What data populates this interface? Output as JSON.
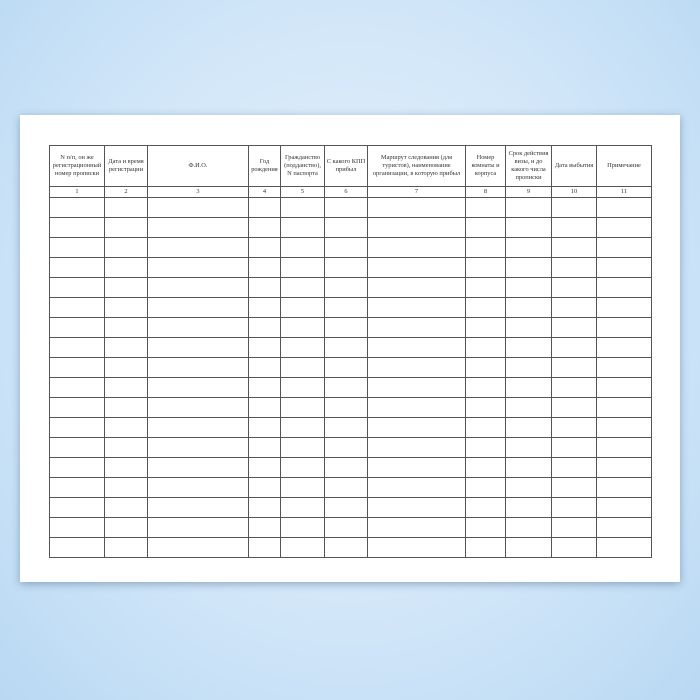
{
  "columns": [
    {
      "header": "N п/п, он же регистрационный номер прописки",
      "number": "1"
    },
    {
      "header": "Дата и время регистрации",
      "number": "2"
    },
    {
      "header": "Ф.И.О.",
      "number": "3"
    },
    {
      "header": "Год рождения",
      "number": "4"
    },
    {
      "header": "Гражданство (подданство), N паспорта",
      "number": "5"
    },
    {
      "header": "С какого КПП прибыл",
      "number": "6"
    },
    {
      "header": "Маршрут следования (для туристов), наименование организации, в которую прибыл",
      "number": "7"
    },
    {
      "header": "Номер комнаты и корпуса",
      "number": "8"
    },
    {
      "header": "Срок действия визы, и до какого числа прописки",
      "number": "9"
    },
    {
      "header": "Дата выбытия",
      "number": "10"
    },
    {
      "header": "Примечание",
      "number": "11"
    }
  ],
  "empty_rows": 18
}
